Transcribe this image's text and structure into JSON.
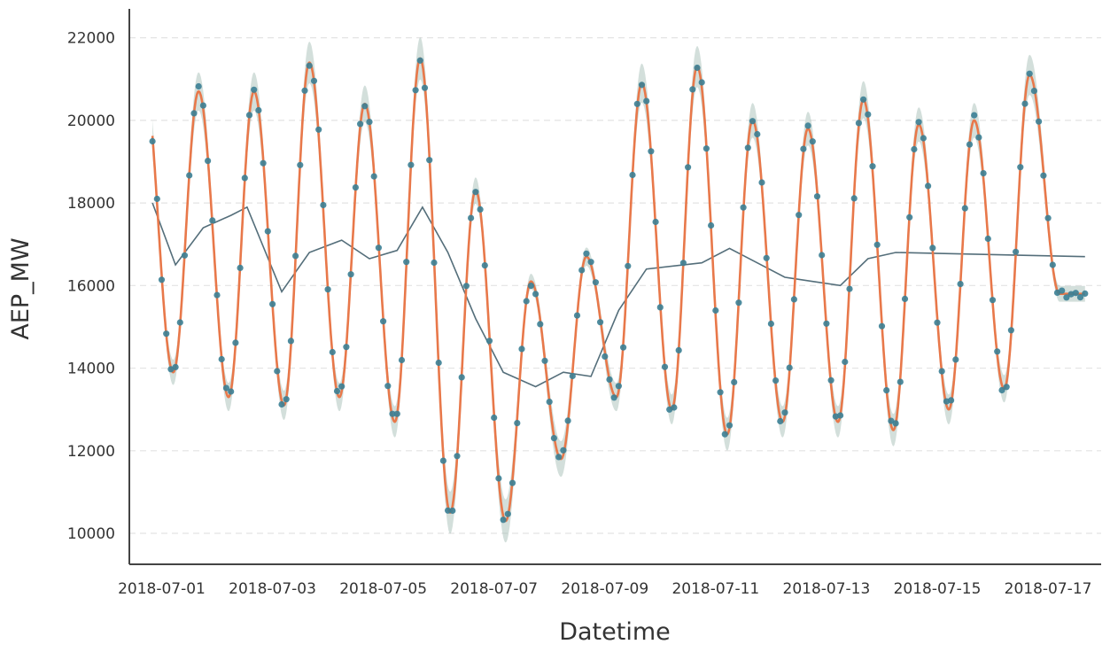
{
  "chart_data": {
    "type": "line",
    "xlabel": "Datetime",
    "ylabel": "AEP_MW",
    "ylim": [
      9250,
      22700
    ],
    "xlim": [
      "2018-06-30T10:00",
      "2018-07-17T23:00"
    ],
    "yticks": [
      10000,
      12000,
      14000,
      16000,
      18000,
      20000,
      22000
    ],
    "xticks": [
      "2018-07-01",
      "2018-07-03",
      "2018-07-05",
      "2018-07-07",
      "2018-07-09",
      "2018-07-11",
      "2018-07-13",
      "2018-07-15",
      "2018-07-17"
    ],
    "grid": "horizontal-dashed",
    "x_range": [
      "2018-06-30T20:00",
      "2018-07-17T16:00"
    ],
    "daily_extremes": [
      {
        "peak_date": "2018-06-30",
        "peak": 21200,
        "trough": 12300
      },
      {
        "peak_date": "2018-07-01",
        "peak": 20700,
        "trough": 13900
      },
      {
        "peak_date": "2018-07-02",
        "peak": 20700,
        "trough": 13300
      },
      {
        "peak_date": "2018-07-03",
        "peak": 21400,
        "trough": 13100
      },
      {
        "peak_date": "2018-07-04",
        "peak": 20400,
        "trough": 13300
      },
      {
        "peak_date": "2018-07-05",
        "peak": 21500,
        "trough": 12700
      },
      {
        "peak_date": "2018-07-06",
        "peak": 18300,
        "trough": 10500
      },
      {
        "peak_date": "2018-07-07",
        "peak": 16100,
        "trough": 10300
      },
      {
        "peak_date": "2018-07-08",
        "peak": 16700,
        "trough": 11800
      },
      {
        "peak_date": "2018-07-09",
        "peak": 20900,
        "trough": 13300
      },
      {
        "peak_date": "2018-07-10",
        "peak": 21300,
        "trough": 13000
      },
      {
        "peak_date": "2018-07-11",
        "peak": 20000,
        "trough": 12400
      },
      {
        "peak_date": "2018-07-12",
        "peak": 19800,
        "trough": 12700
      },
      {
        "peak_date": "2018-07-13",
        "peak": 20500,
        "trough": 12700
      },
      {
        "peak_date": "2018-07-14",
        "peak": 19900,
        "trough": 12500
      },
      {
        "peak_date": "2018-07-15",
        "peak": 20000,
        "trough": 13000
      },
      {
        "peak_date": "2018-07-16",
        "peak": 21100,
        "trough": 13500
      },
      {
        "peak_date": "2018-07-17",
        "peak": 15800,
        "trough": 15800
      }
    ],
    "daily_mean_series": [
      {
        "x": "2018-06-30T20:00",
        "y": 18000
      },
      {
        "x": "2018-07-01T06:00",
        "y": 16500
      },
      {
        "x": "2018-07-01T18:00",
        "y": 17400
      },
      {
        "x": "2018-07-02T06:00",
        "y": 17700
      },
      {
        "x": "2018-07-02T13:00",
        "y": 17900
      },
      {
        "x": "2018-07-03T04:00",
        "y": 15850
      },
      {
        "x": "2018-07-03T16:00",
        "y": 16800
      },
      {
        "x": "2018-07-04T06:00",
        "y": 17100
      },
      {
        "x": "2018-07-04T18:00",
        "y": 16650
      },
      {
        "x": "2018-07-05T06:00",
        "y": 16850
      },
      {
        "x": "2018-07-05T17:00",
        "y": 17900
      },
      {
        "x": "2018-07-06T04:00",
        "y": 16800
      },
      {
        "x": "2018-07-06T16:00",
        "y": 15200
      },
      {
        "x": "2018-07-07T04:00",
        "y": 13900
      },
      {
        "x": "2018-07-07T18:00",
        "y": 13550
      },
      {
        "x": "2018-07-08T06:00",
        "y": 13900
      },
      {
        "x": "2018-07-08T18:00",
        "y": 13800
      },
      {
        "x": "2018-07-09T06:00",
        "y": 15400
      },
      {
        "x": "2018-07-09T18:00",
        "y": 16400
      },
      {
        "x": "2018-07-10T18:00",
        "y": 16550
      },
      {
        "x": "2018-07-11T06:00",
        "y": 16900
      },
      {
        "x": "2018-07-11T18:00",
        "y": 16550
      },
      {
        "x": "2018-07-12T06:00",
        "y": 16200
      },
      {
        "x": "2018-07-12T18:00",
        "y": 16100
      },
      {
        "x": "2018-07-13T06:00",
        "y": 16000
      },
      {
        "x": "2018-07-13T18:00",
        "y": 16650
      },
      {
        "x": "2018-07-14T06:00",
        "y": 16800
      },
      {
        "x": "2018-07-17T16:00",
        "y": 16700
      }
    ],
    "colors": {
      "observed_points": "#3b7f95",
      "fitted_line": "#e8784a",
      "confidence_band": "#9db8b0",
      "mean_line": "#546e7a",
      "axis": "#444444",
      "grid": "#e3e3e3"
    }
  }
}
